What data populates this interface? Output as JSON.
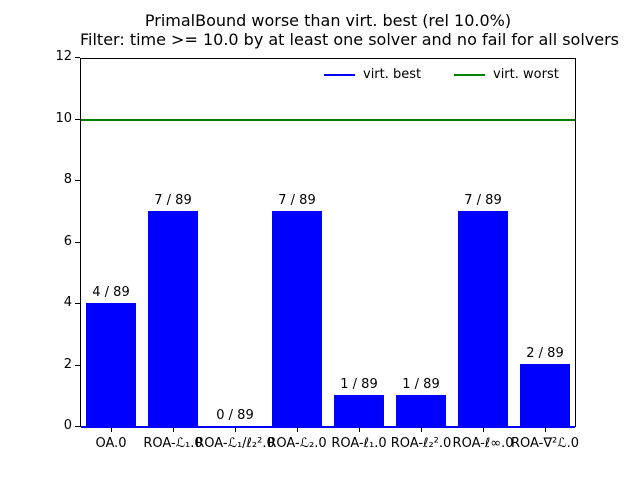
{
  "title": {
    "line1": "PrimalBound worse than virt. best (rel 10.0%)",
    "line2": "Filter: time >= 10.0 by at least one solver and no fail for all solvers"
  },
  "legend": [
    {
      "label": "virt. best",
      "color": "#0000ff"
    },
    {
      "label": "virt. worst",
      "color": "#008000"
    }
  ],
  "chart_data": {
    "type": "bar",
    "title": "PrimalBound worse than virt. best (rel 10.0%)",
    "subtitle": "Filter: time >= 10.0 by at least one solver and no fail for all solvers",
    "categories": [
      "OA.0",
      "ROA-ℒ₁.0",
      "ROA-ℒ₁/ℓ₂².0",
      "ROA-ℒ₂.0",
      "ROA-ℓ₁.0",
      "ROA-ℓ₂².0",
      "ROA-ℓ∞.0",
      "ROA-∇²ℒ.0"
    ],
    "values": [
      4,
      7,
      0,
      7,
      1,
      1,
      7,
      2
    ],
    "bar_labels": [
      "4 / 89",
      "7 / 89",
      "0 / 89",
      "7 / 89",
      "1 / 89",
      "1 / 89",
      "7 / 89",
      "2 / 89"
    ],
    "bar_color": "#0000ff",
    "ylim": [
      0,
      12
    ],
    "y_ticks": [
      0,
      2,
      4,
      6,
      8,
      10,
      12
    ],
    "grid": false,
    "legend_position": "upper right inside, 2 columns, no frame",
    "ref_lines": [
      {
        "label": "virt. best",
        "y": 0,
        "color": "#0000ff"
      },
      {
        "label": "virt. worst",
        "y": 10,
        "color": "#008000"
      }
    ]
  }
}
